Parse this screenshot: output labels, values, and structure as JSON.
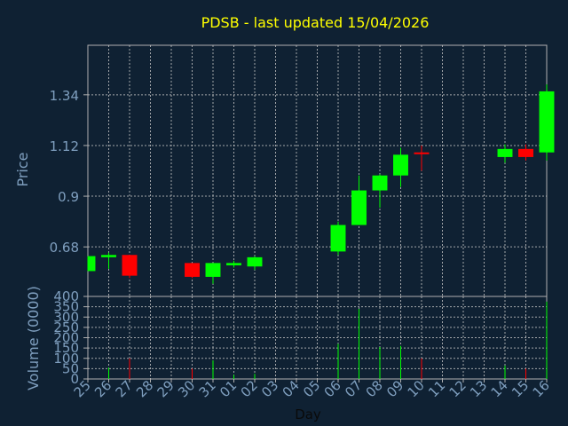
{
  "title": "PDSB - last updated 15/04/2026",
  "colors": {
    "background": "#0f2133",
    "plot_border": "#b0b0b0",
    "grid": "#c8c8c8",
    "title": "#ffff00",
    "label": "#7f9fbf",
    "up": "#00ff00",
    "down": "#ff0000"
  },
  "chart_data": [
    {
      "type": "candlestick",
      "ylabel": "Price",
      "ylim": [
        0.465,
        1.555
      ],
      "yticks": [
        0.68,
        0.9,
        1.12,
        1.34
      ],
      "ytick_labels": [
        "0.68",
        "0.9",
        "1.12",
        "1.34"
      ],
      "x_start_day": 25,
      "xlim": [
        0.5,
        22.5
      ],
      "grid": true,
      "candles": [
        {
          "x": 0,
          "open": 0.575,
          "high": 0.64,
          "low": 0.575,
          "close": 0.64
        },
        {
          "x": 1,
          "open": 0.635,
          "high": 0.655,
          "low": 0.585,
          "close": 0.645
        },
        {
          "x": 2,
          "open": 0.645,
          "high": 0.645,
          "low": 0.545,
          "close": 0.555
        },
        {
          "x": 5,
          "open": 0.61,
          "high": 0.61,
          "low": 0.545,
          "close": 0.55
        },
        {
          "x": 6,
          "open": 0.55,
          "high": 0.61,
          "low": 0.52,
          "close": 0.61
        },
        {
          "x": 7,
          "open": 0.6,
          "high": 0.62,
          "low": 0.59,
          "close": 0.61
        },
        {
          "x": 8,
          "open": 0.595,
          "high": 0.64,
          "low": 0.58,
          "close": 0.635
        },
        {
          "x": 12,
          "open": 0.66,
          "high": 0.79,
          "low": 0.645,
          "close": 0.775
        },
        {
          "x": 13,
          "open": 0.775,
          "high": 0.99,
          "low": 0.775,
          "close": 0.925
        },
        {
          "x": 14,
          "open": 0.925,
          "high": 0.995,
          "low": 0.85,
          "close": 0.99
        },
        {
          "x": 15,
          "open": 0.99,
          "high": 1.11,
          "low": 0.94,
          "close": 1.08
        },
        {
          "x": 16,
          "open": 1.09,
          "high": 1.12,
          "low": 1.01,
          "close": 1.085
        },
        {
          "x": 20,
          "open": 1.07,
          "high": 1.125,
          "low": 1.045,
          "close": 1.105
        },
        {
          "x": 21,
          "open": 1.105,
          "high": 1.125,
          "low": 1.055,
          "close": 1.07
        },
        {
          "x": 22,
          "open": 1.09,
          "high": 1.385,
          "low": 1.055,
          "close": 1.355
        }
      ]
    },
    {
      "type": "bar",
      "ylabel": "Volume (0000)",
      "xlabel": "Day",
      "ylim": [
        0,
        400
      ],
      "yticks": [
        0,
        50,
        100,
        150,
        200,
        250,
        300,
        350,
        400
      ],
      "ytick_labels": [
        "0",
        "50",
        "100",
        "150",
        "200",
        "250",
        "300",
        "350",
        "400"
      ],
      "categories": [
        "25",
        "26",
        "27",
        "28",
        "29",
        "30",
        "31",
        "01",
        "02",
        "03",
        "04",
        "05",
        "06",
        "07",
        "08",
        "09",
        "10",
        "11",
        "12",
        "13",
        "14",
        "15",
        "16"
      ],
      "bars": [
        {
          "x": 0,
          "value": 0,
          "dir": "up"
        },
        {
          "x": 1,
          "value": 55,
          "dir": "up"
        },
        {
          "x": 2,
          "value": 100,
          "dir": "down"
        },
        {
          "x": 5,
          "value": 50,
          "dir": "down"
        },
        {
          "x": 6,
          "value": 90,
          "dir": "up"
        },
        {
          "x": 7,
          "value": 20,
          "dir": "up"
        },
        {
          "x": 8,
          "value": 25,
          "dir": "up"
        },
        {
          "x": 12,
          "value": 170,
          "dir": "up"
        },
        {
          "x": 13,
          "value": 340,
          "dir": "up"
        },
        {
          "x": 14,
          "value": 155,
          "dir": "up"
        },
        {
          "x": 15,
          "value": 160,
          "dir": "up"
        },
        {
          "x": 16,
          "value": 100,
          "dir": "down"
        },
        {
          "x": 20,
          "value": 65,
          "dir": "up"
        },
        {
          "x": 21,
          "value": 50,
          "dir": "down"
        },
        {
          "x": 22,
          "value": 375,
          "dir": "up"
        }
      ]
    }
  ]
}
